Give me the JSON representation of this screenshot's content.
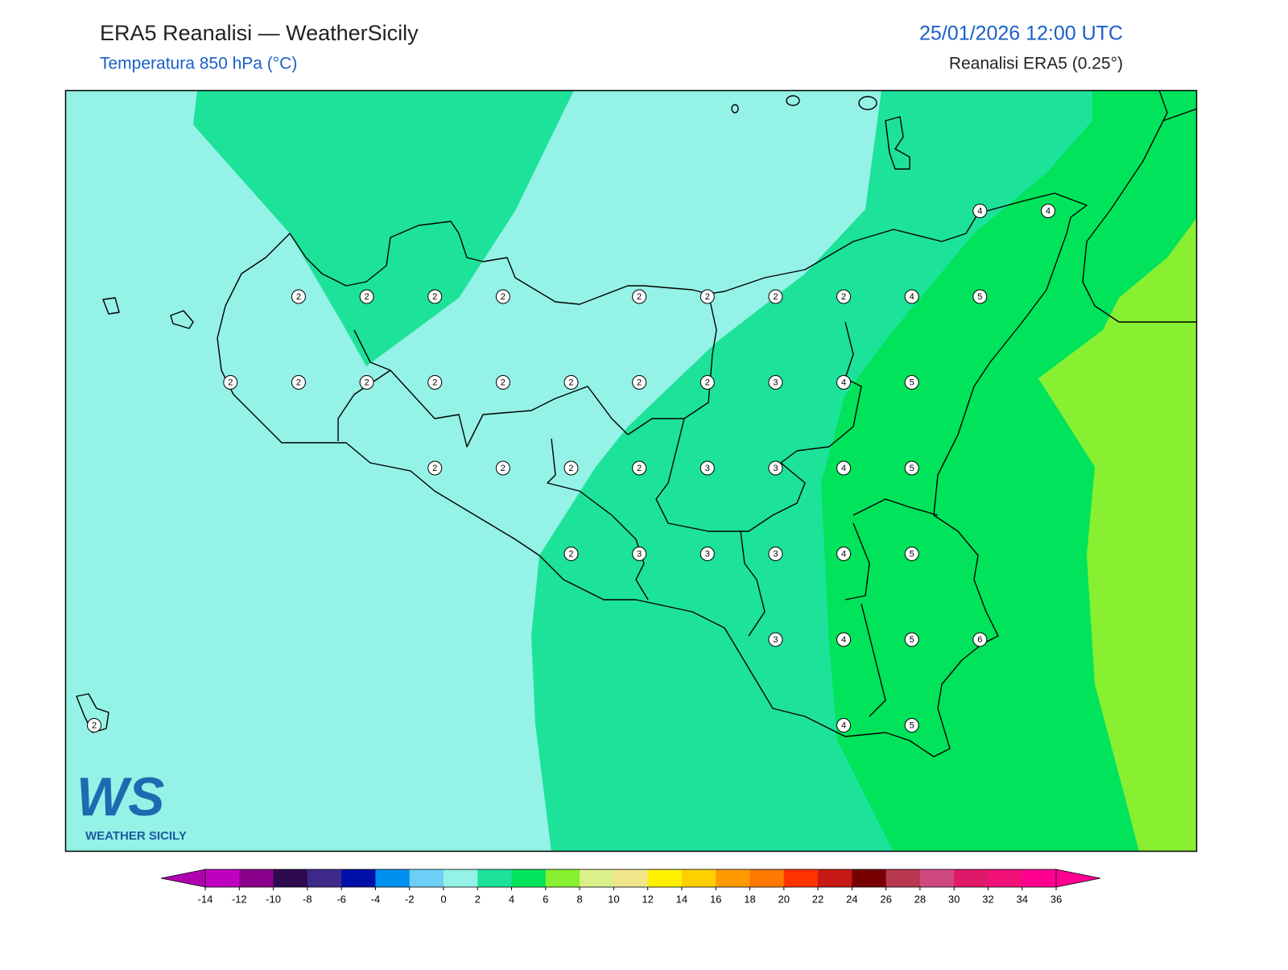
{
  "header": {
    "title": "ERA5 Reanalisi — WeatherSicily",
    "subtitle": "Temperatura 850 hPa (°C)",
    "datetime": "25/01/2026 12:00 UTC",
    "source": "Reanalisi ERA5 (0.25°)"
  },
  "map": {
    "grid_values": [
      [
        null,
        null,
        null,
        null,
        null,
        null,
        null,
        null,
        null,
        null,
        null,
        null,
        null,
        4,
        4
      ],
      [
        null,
        null,
        null,
        2,
        2,
        2,
        2,
        null,
        2,
        2,
        2,
        2,
        4,
        5,
        null
      ],
      [
        null,
        null,
        2,
        2,
        2,
        2,
        2,
        2,
        2,
        2,
        3,
        4,
        5,
        null,
        null
      ],
      [
        null,
        null,
        null,
        null,
        null,
        2,
        2,
        2,
        2,
        3,
        3,
        4,
        5,
        null,
        null
      ],
      [
        null,
        null,
        null,
        null,
        null,
        null,
        null,
        2,
        3,
        3,
        3,
        4,
        5,
        null,
        null
      ],
      [
        null,
        null,
        null,
        null,
        null,
        null,
        null,
        null,
        null,
        null,
        3,
        4,
        5,
        6,
        null
      ],
      [
        2,
        null,
        null,
        null,
        null,
        null,
        null,
        null,
        null,
        null,
        null,
        4,
        5,
        null,
        null
      ]
    ]
  },
  "colorbar": {
    "ticks": [
      -14,
      -12,
      -10,
      -8,
      -6,
      -4,
      -2,
      0,
      2,
      4,
      6,
      8,
      10,
      12,
      14,
      16,
      18,
      20,
      22,
      24,
      26,
      28,
      30,
      32,
      34,
      36
    ],
    "colors": [
      "#c000c0",
      "#8a008a",
      "#2e0a4e",
      "#3d2a8a",
      "#0010a8",
      "#0090f0",
      "#6ccff6",
      "#94f2e6",
      "#1de29a",
      "#00e35a",
      "#88f030",
      "#dcf08a",
      "#f0e68c",
      "#fff000",
      "#ffd000",
      "#ff9a00",
      "#ff7800",
      "#ff3200",
      "#c81a14",
      "#780000",
      "#b83850",
      "#d04880",
      "#e0186a",
      "#f01078",
      "#ff0090"
    ],
    "extend_min_color": "#b000b0",
    "extend_max_color": "#ff0090"
  },
  "logo": {
    "mark": "WS",
    "text": "WEATHER SICILY"
  }
}
